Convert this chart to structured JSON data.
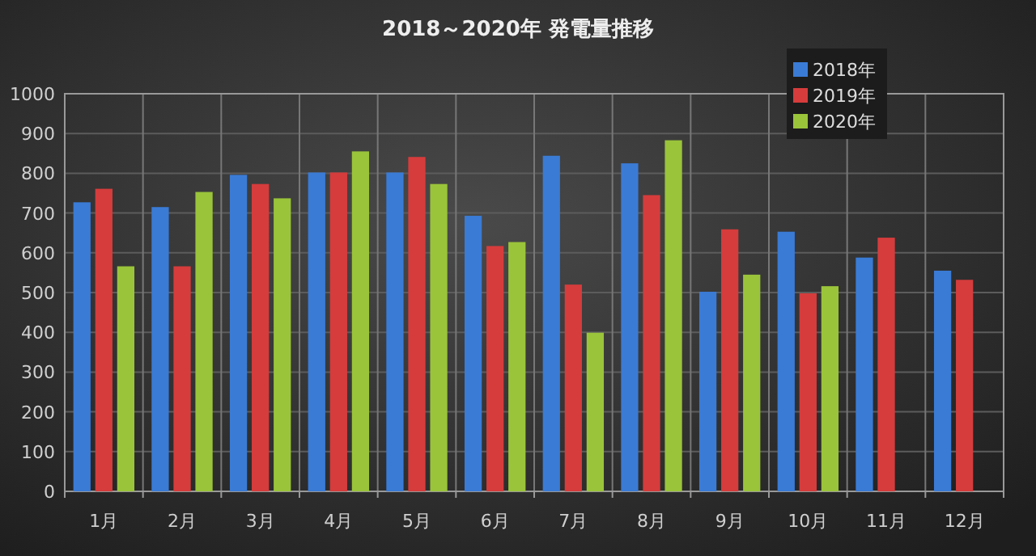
{
  "chart_data": {
    "type": "bar",
    "title": "2018～2020年 発電量推移",
    "categories": [
      "1月",
      "2月",
      "3月",
      "4月",
      "5月",
      "6月",
      "7月",
      "8月",
      "9月",
      "10月",
      "11月",
      "12月"
    ],
    "series": [
      {
        "name": "2018年",
        "color": "#3a7bd5",
        "values": [
          727,
          715,
          796,
          802,
          802,
          693,
          844,
          825,
          502,
          653,
          588,
          555
        ]
      },
      {
        "name": "2019年",
        "color": "#d63c3c",
        "values": [
          761,
          566,
          773,
          802,
          841,
          617,
          520,
          745,
          659,
          498,
          638,
          532
        ]
      },
      {
        "name": "2020年",
        "color": "#9ac43a",
        "values": [
          566,
          753,
          737,
          855,
          773,
          627,
          399,
          883,
          545,
          516,
          null,
          null
        ]
      }
    ],
    "ylim": [
      0,
      1000
    ],
    "yticks": [
      0,
      100,
      200,
      300,
      400,
      500,
      600,
      700,
      800,
      900,
      1000
    ],
    "grid": true,
    "legend": "top right"
  }
}
